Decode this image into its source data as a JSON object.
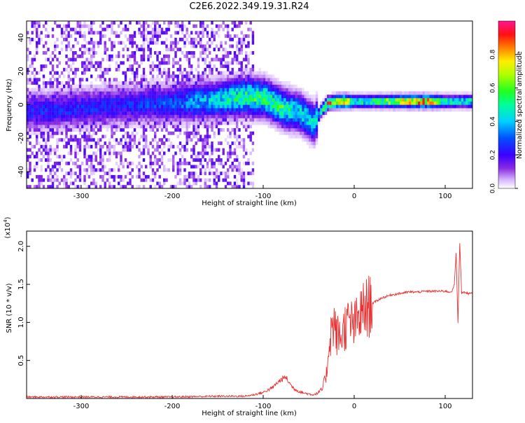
{
  "title": "C2E6.2022.349.19.31.R24",
  "colors": {
    "snr_line": "#e83030",
    "frame": "#000000",
    "background": "#ffffff"
  },
  "chart_data": [
    {
      "type": "heatmap",
      "xlabel": "Height of straight line (km)",
      "ylabel": "Frequency (Hz)",
      "xlim": [
        -360,
        130
      ],
      "ylim": [
        -50,
        50
      ],
      "xticks": [
        -300,
        -200,
        -100,
        0,
        100
      ],
      "yticks": [
        -40,
        -20,
        0,
        20,
        40
      ],
      "grid": false,
      "colorbar": {
        "label": "Normalized spectral amplitude",
        "range": [
          0,
          1
        ],
        "ticks": [
          0.0,
          0.2,
          0.4,
          0.6,
          0.8
        ],
        "colormap": "rainbow (white-purple-blue-cyan-green-yellow-red-magenta)"
      },
      "ridge": {
        "description": "dominant frequency ridge along height",
        "x": [
          -360,
          -300,
          -250,
          -200,
          -150,
          -120,
          -100,
          -80,
          -60,
          -45,
          -38,
          -30,
          -20,
          -10,
          0,
          20,
          50,
          80,
          100,
          130
        ],
        "y": [
          -5,
          -3,
          -1,
          0,
          2,
          4,
          3,
          -3,
          -6,
          -12,
          -5,
          0,
          1,
          1,
          1,
          1,
          1,
          1,
          1,
          1
        ],
        "amplitude": [
          0.25,
          0.25,
          0.25,
          0.3,
          0.45,
          0.55,
          0.55,
          0.55,
          0.45,
          0.45,
          0.5,
          0.8,
          0.85,
          0.9,
          0.5,
          0.55,
          0.75,
          0.9,
          0.5,
          0.5
        ]
      }
    },
    {
      "type": "line",
      "xlabel": "Height of straight line (km)",
      "ylabel": "SNR (10 * v/v)",
      "multiplier_label": "(x10",
      "multiplier_exp": "4",
      "multiplier_close": ")",
      "xlim": [
        -360,
        130
      ],
      "ylim": [
        0,
        2.2
      ],
      "xticks": [
        -300,
        -200,
        -100,
        0,
        100
      ],
      "yticks": [
        0.5,
        1.0,
        1.5,
        2.0
      ],
      "ytick_labels": [
        "0.5",
        "1.0",
        "1.5",
        "2.0"
      ],
      "grid": false,
      "series": [
        {
          "x": [
            -360,
            -300,
            -250,
            -200,
            -150,
            -120,
            -110,
            -100,
            -90,
            -85,
            -80,
            -75,
            -70,
            -65,
            -60,
            -55,
            -50,
            -45,
            -40,
            -35,
            -30,
            -28,
            -25,
            -22,
            -20,
            -15,
            -10,
            -5,
            0,
            5,
            10,
            15,
            20,
            30,
            40,
            50,
            60,
            70,
            80,
            90,
            100,
            105,
            108,
            110,
            112,
            114,
            116,
            118,
            120,
            125,
            130
          ],
          "y": [
            0.02,
            0.02,
            0.02,
            0.02,
            0.03,
            0.03,
            0.05,
            0.08,
            0.14,
            0.2,
            0.25,
            0.28,
            0.18,
            0.12,
            0.09,
            0.07,
            0.06,
            0.05,
            0.07,
            0.12,
            0.35,
            0.7,
            0.9,
            1.0,
            0.85,
            0.8,
            0.95,
            1.0,
            0.95,
            1.05,
            1.15,
            1.2,
            1.25,
            1.32,
            1.36,
            1.38,
            1.4,
            1.4,
            1.41,
            1.41,
            1.41,
            1.4,
            1.42,
            1.5,
            1.9,
            1.0,
            2.05,
            1.38,
            1.4,
            1.38,
            1.38
          ]
        }
      ]
    }
  ]
}
